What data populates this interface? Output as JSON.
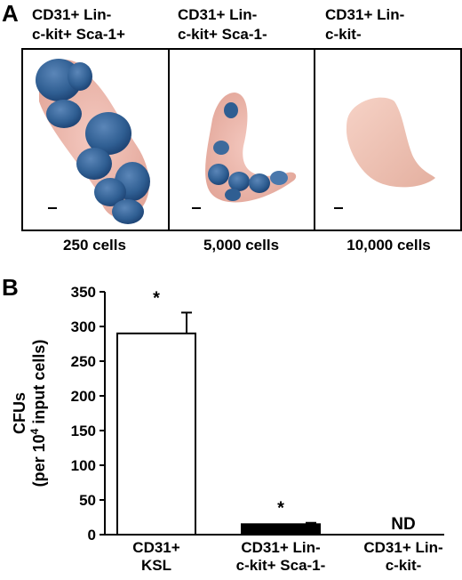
{
  "panel_a": {
    "letter": "A",
    "columns": [
      {
        "title_line1": "CD31+ Lin-",
        "title_line2": "c-kit+ Sca-1+",
        "cells": "250 cells"
      },
      {
        "title_line1": "CD31+ Lin-",
        "title_line2": "c-kit+ Sca-1-",
        "cells": "5,000 cells"
      },
      {
        "title_line1": "CD31+ Lin-",
        "title_line2": "c-kit-",
        "cells": "10,000 cells"
      }
    ]
  },
  "panel_b": {
    "letter": "B"
  },
  "chart_data": {
    "type": "bar",
    "ylabel_line1": "CFUs",
    "ylabel_line2_pre": "(per 10",
    "ylabel_sup": "4",
    "ylabel_line2_post": " input cells)",
    "ylim": [
      0,
      350
    ],
    "yticks": [
      0,
      50,
      100,
      150,
      200,
      250,
      300,
      350
    ],
    "categories": [
      {
        "line1": "CD31+",
        "line2": "KSL"
      },
      {
        "line1": "CD31+ Lin-",
        "line2": "c-kit+ Sca-1-"
      },
      {
        "line1": "CD31+ Lin-",
        "line2": "c-kit-"
      }
    ],
    "values": [
      290,
      15,
      null
    ],
    "errors": [
      30,
      2,
      null
    ],
    "annotations": [
      "*",
      "*",
      "ND"
    ],
    "bar_fills": [
      "#ffffff",
      "#000000",
      null
    ]
  }
}
